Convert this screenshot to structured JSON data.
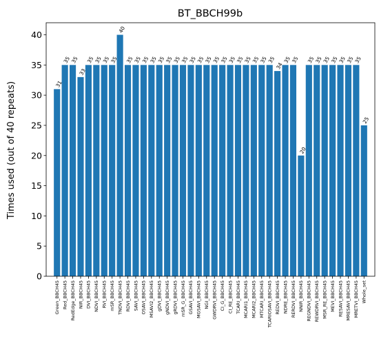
{
  "chart_data": {
    "type": "bar",
    "title": "BT_BBCH99b",
    "ylabel": "Times used (out of 40 repeats)",
    "xlabel": "",
    "ylim": [
      0,
      42
    ],
    "yticks": [
      0,
      5,
      10,
      15,
      20,
      25,
      30,
      35,
      40
    ],
    "bar_color": "#1f77b4",
    "categories": [
      "Green_BBCH45",
      "Red_BBCH45",
      "RedEdge_BBCH45",
      "NIR_BBCH45",
      "DVI_BBCH45",
      "NDVI_BBCH45",
      "RVI_BBCH45",
      "mSR_BBCH45",
      "TNDVI_BBCH45",
      "RDVI_BBCH45",
      "SAVI_BBCH45",
      "OSAVI_BBCH45",
      "MSAVI2_BBCH45",
      "gDVI_BBCH45",
      "gNDVI_BBCH45",
      "gRDVI_BBCH45",
      "mSR_G_BBCH45",
      "GSAVI_BBCH45",
      "MGSAVI_BBCH45",
      "NGI_BBCH45",
      "GWDRVI_BBCH45",
      "CI_G_BBCH45",
      "CI_RE_BBCH45",
      "TCARI_BBCH45",
      "MCARI1_BBCH45",
      "MCARI2_BBCH45",
      "MTCARI_BBCH45",
      "TCARIOSAVI_BBCH45",
      "REDVI_BBCH45",
      "NDRE_BBCH45",
      "RERDVI_BBCH45",
      "NNIR_BBCH45",
      "REGNDVI_BBCH45",
      "REWDRVI_BBCH45",
      "MSR_RE_BBCH45",
      "MEVI_BBCH45",
      "RESAVI_BBCH45",
      "MRESAVI_BBCH45",
      "MRETVI_BBCH45",
      "Whole_set"
    ],
    "values": [
      31,
      35,
      35,
      33,
      35,
      35,
      35,
      35,
      40,
      35,
      35,
      35,
      35,
      35,
      35,
      35,
      35,
      35,
      35,
      35,
      35,
      35,
      35,
      35,
      35,
      35,
      35,
      35,
      34,
      35,
      35,
      20,
      35,
      35,
      35,
      35,
      35,
      35,
      35,
      25
    ]
  }
}
